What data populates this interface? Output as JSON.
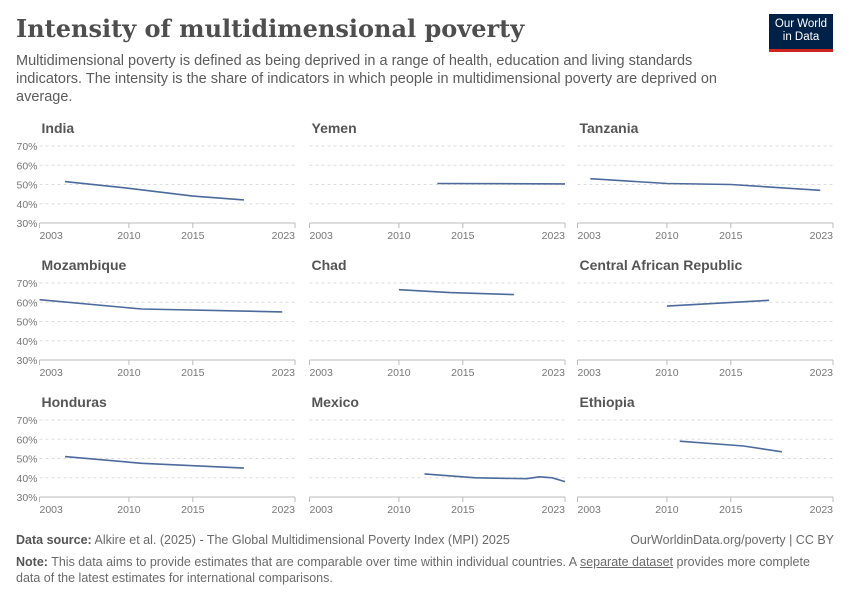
{
  "title": "Intensity of multidimensional poverty",
  "subtitle": "Multidimensional poverty is defined as being deprived in a range of health, education and living standards indicators. The intensity is the share of indicators in which people in multidimensional poverty are deprived on average.",
  "logo": {
    "line1": "Our World",
    "line2": "in Data",
    "bg": "#002147",
    "accent": "#ce261e"
  },
  "footer": {
    "source_label": "Data source:",
    "source": "Alkire et al. (2025) - The Global Multidimensional Poverty Index (MPI) 2025",
    "url": "OurWorldinData.org/poverty | CC BY",
    "note_label": "Note:",
    "note_pre": "This data aims to provide estimates that are comparable over time within individual countries. A ",
    "note_link": "separate dataset",
    "note_post": " provides more complete data of the latest estimates for international comparisons."
  },
  "chart_data": {
    "type": "line",
    "layout": "small-multiples",
    "line_color": "#4c6a9c",
    "ylim": [
      30,
      70
    ],
    "yticks": [
      "30%",
      "40%",
      "50%",
      "60%",
      "70%"
    ],
    "xlim": [
      2003,
      2023
    ],
    "xticks": [
      "2003",
      "2010",
      "2015",
      "2023"
    ],
    "grid": true,
    "panels": [
      {
        "name": "India",
        "x": [
          2005,
          2010,
          2015,
          2019
        ],
        "y": [
          51.5,
          48,
          44,
          42
        ]
      },
      {
        "name": "Yemen",
        "x": [
          2013,
          2023
        ],
        "y": [
          50.5,
          50.3
        ]
      },
      {
        "name": "Tanzania",
        "x": [
          2004,
          2010,
          2015,
          2022
        ],
        "y": [
          53,
          50.5,
          50,
          47
        ]
      },
      {
        "name": "Mozambique",
        "x": [
          2003,
          2011,
          2022
        ],
        "y": [
          61.3,
          56.5,
          55
        ]
      },
      {
        "name": "Chad",
        "x": [
          2010,
          2014,
          2019
        ],
        "y": [
          66.5,
          65,
          64
        ]
      },
      {
        "name": "Central African Republic",
        "x": [
          2010,
          2018
        ],
        "y": [
          58,
          61
        ]
      },
      {
        "name": "Honduras",
        "x": [
          2005,
          2011,
          2019
        ],
        "y": [
          51,
          47.5,
          45
        ]
      },
      {
        "name": "Mexico",
        "x": [
          2012,
          2016,
          2020,
          2021,
          2022,
          2023
        ],
        "y": [
          42,
          40,
          39.5,
          40.5,
          40,
          38
        ]
      },
      {
        "name": "Ethiopia",
        "x": [
          2011,
          2016,
          2019
        ],
        "y": [
          59,
          56.5,
          53.5
        ]
      }
    ]
  }
}
